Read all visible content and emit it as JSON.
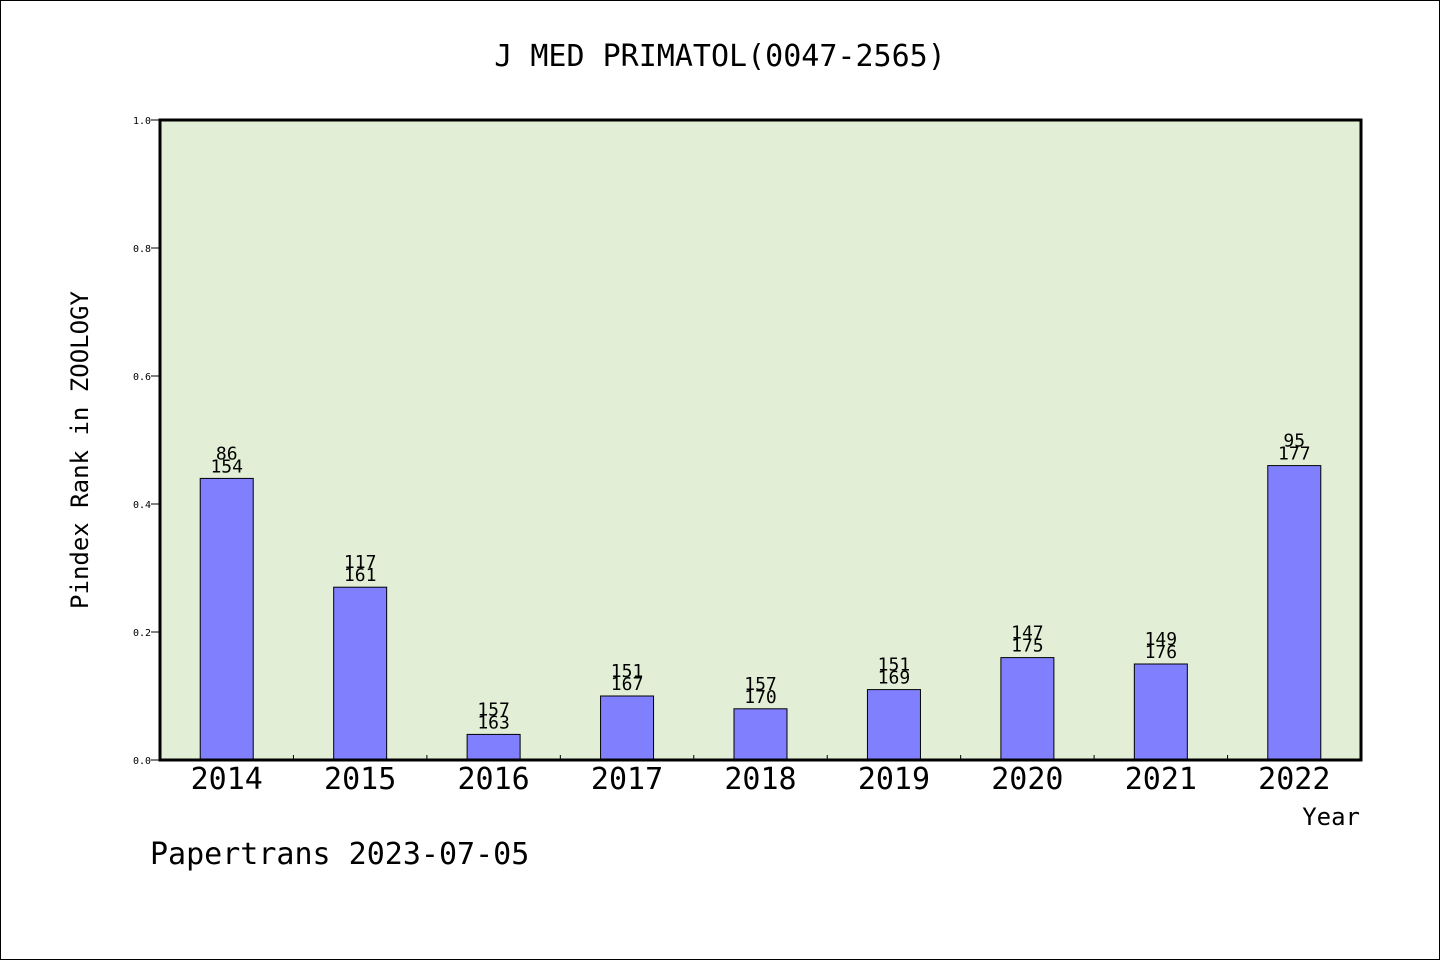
{
  "chart_data": {
    "type": "bar",
    "title": "J MED PRIMATOL(0047-2565)",
    "xlabel": "Year",
    "ylabel": "Pindex Rank in ZOOLOGY",
    "ylim": [
      0,
      1.0
    ],
    "yticks": [
      "0.0",
      "0.2",
      "0.4",
      "0.6",
      "0.8",
      "1.0"
    ],
    "categories": [
      "2014",
      "2015",
      "2016",
      "2017",
      "2018",
      "2019",
      "2020",
      "2021",
      "2022"
    ],
    "values": [
      0.44,
      0.27,
      0.04,
      0.1,
      0.08,
      0.11,
      0.16,
      0.15,
      0.46
    ],
    "label_top": [
      "86",
      "117",
      "157",
      "151",
      "157",
      "151",
      "147",
      "149",
      "95"
    ],
    "label_bottom": [
      "154",
      "161",
      "163",
      "167",
      "170",
      "169",
      "175",
      "176",
      "177"
    ],
    "grid": false,
    "colors": {
      "plot_bg": "#e2efd6",
      "bar_fill": "#8080ff",
      "axis": "#000000"
    }
  },
  "footer": {
    "text": "Papertrans 2023-07-05"
  }
}
